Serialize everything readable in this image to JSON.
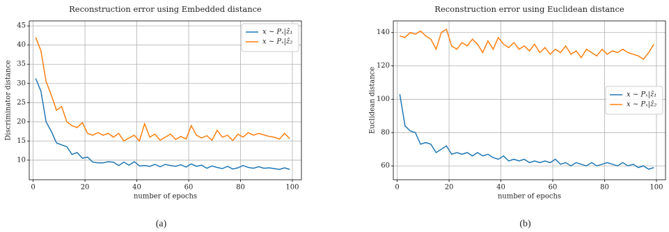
{
  "chart_data": [
    {
      "type": "line",
      "title": "Reconstruction error using Embedded distance",
      "xlabel": "number of epochs",
      "ylabel": "Discriminator distance",
      "caption": "(a)",
      "x": [
        1,
        3,
        5,
        7,
        9,
        11,
        13,
        15,
        17,
        19,
        21,
        23,
        25,
        27,
        29,
        31,
        33,
        35,
        37,
        39,
        41,
        43,
        45,
        47,
        49,
        51,
        53,
        55,
        57,
        59,
        61,
        63,
        65,
        67,
        69,
        71,
        73,
        75,
        77,
        79,
        81,
        83,
        85,
        87,
        89,
        91,
        93,
        95,
        97,
        99
      ],
      "series": [
        {
          "name": "x ∼ Pₓ|ẑ₁",
          "color": "#1f77b4",
          "values": [
            31.3,
            28,
            20,
            17.5,
            14.5,
            14,
            13.5,
            11.5,
            12,
            10.5,
            10.8,
            9.5,
            9.3,
            9.3,
            9.6,
            9.5,
            8.6,
            9.5,
            8.7,
            9.6,
            8.5,
            8.6,
            8.4,
            8.9,
            8.3,
            8.9,
            8.6,
            8.4,
            8.8,
            8.2,
            9.0,
            8.4,
            8.7,
            7.9,
            8.5,
            8.1,
            7.8,
            8.4,
            7.7,
            8.0,
            8.6,
            8.1,
            7.9,
            8.3,
            7.9,
            8.0,
            7.8,
            7.6,
            8.0,
            7.6
          ]
        },
        {
          "name": "x ∼ Pₓ|ẑ₂",
          "color": "#ff7f0e",
          "values": [
            42,
            38.5,
            30.5,
            27,
            23,
            24,
            20,
            19,
            18.5,
            19.8,
            17,
            16.5,
            17.2,
            16.5,
            17,
            16,
            17,
            15,
            15.8,
            16.5,
            15,
            19.5,
            16,
            16.8,
            15.2,
            16,
            16.8,
            15.4,
            16.2,
            15.5,
            19,
            16.5,
            15.8,
            16.4,
            15.2,
            17.8,
            16,
            16.5,
            15.1,
            16.8,
            16,
            17.2,
            16.5,
            17,
            16.6,
            16.2,
            16,
            15.5,
            17,
            15.6
          ]
        }
      ],
      "xlim": [
        -1.5,
        103.5
      ],
      "xticks": [
        0,
        20,
        40,
        60,
        80,
        100
      ],
      "ylim": [
        4.9,
        46.3
      ],
      "yticks": [
        10,
        15,
        20,
        25,
        30,
        35,
        40,
        45
      ],
      "grid": true,
      "legend": "upper right"
    },
    {
      "type": "line",
      "title": "Reconstruction error using Euclidean distance",
      "xlabel": "number of epochs",
      "ylabel": "Euclidean distance",
      "caption": "(b)",
      "x": [
        1,
        3,
        5,
        7,
        9,
        11,
        13,
        15,
        17,
        19,
        21,
        23,
        25,
        27,
        29,
        31,
        33,
        35,
        37,
        39,
        41,
        43,
        45,
        47,
        49,
        51,
        53,
        55,
        57,
        59,
        61,
        63,
        65,
        67,
        69,
        71,
        73,
        75,
        77,
        79,
        81,
        83,
        85,
        87,
        89,
        91,
        93,
        95,
        97,
        99
      ],
      "series": [
        {
          "name": "x ∼ Pₓ|ẑ₁",
          "color": "#1f77b4",
          "values": [
            103,
            84,
            81,
            80,
            73,
            74,
            73,
            68,
            70,
            72,
            67,
            68,
            67,
            68,
            66,
            68,
            66,
            67,
            65,
            64,
            66,
            63,
            64,
            63,
            64,
            62,
            63,
            62,
            63,
            62,
            64,
            61,
            62,
            60,
            62,
            61,
            60,
            62,
            60,
            61,
            62,
            61,
            60,
            62,
            60,
            61,
            59,
            60,
            58,
            59
          ]
        },
        {
          "name": "x ∼ Pₓ|ẑ₂",
          "color": "#ff7f0e",
          "values": [
            138,
            137,
            140,
            139,
            141,
            138,
            136,
            130,
            140,
            142,
            132,
            130,
            134,
            132,
            136,
            133,
            128,
            135,
            130,
            137,
            133,
            131,
            134,
            130,
            132,
            129,
            133,
            128,
            131,
            127,
            130,
            128,
            132,
            127,
            129,
            125,
            130,
            128,
            126,
            130,
            127,
            129,
            128,
            130,
            128,
            127,
            126,
            124,
            128,
            133
          ]
        }
      ],
      "xlim": [
        -1.5,
        103.5
      ],
      "xticks": [
        0,
        20,
        40,
        60,
        80,
        100
      ],
      "ylim": [
        51.7,
        147
      ],
      "yticks": [
        60,
        80,
        100,
        120,
        140
      ],
      "grid": true,
      "legend": "center right"
    }
  ]
}
